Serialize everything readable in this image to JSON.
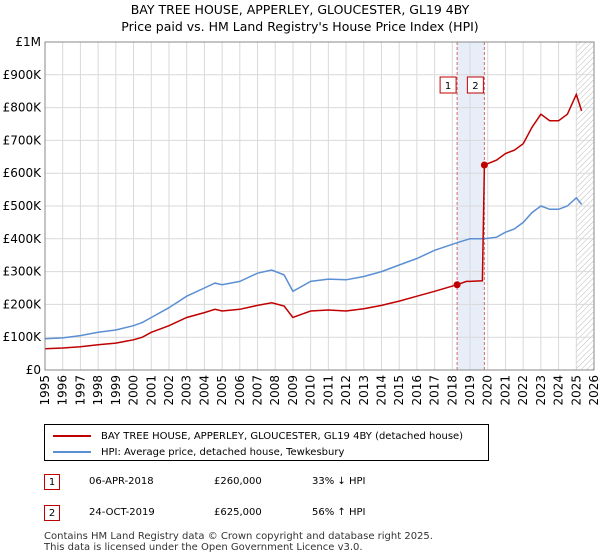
{
  "chart_data": {
    "type": "line",
    "title": "BAY TREE HOUSE, APPERLEY, GLOUCESTER, GL19 4BY",
    "subtitle": "Price paid vs. HM Land Registry's House Price Index (HPI)",
    "xlim": [
      1995,
      2026
    ],
    "ylim": [
      0,
      1000000
    ],
    "x_ticks": [
      "1995",
      "1996",
      "1997",
      "1998",
      "1999",
      "2000",
      "2001",
      "2002",
      "2003",
      "2004",
      "2005",
      "2006",
      "2007",
      "2008",
      "2009",
      "2010",
      "2011",
      "2012",
      "2013",
      "2014",
      "2015",
      "2016",
      "2017",
      "2018",
      "2019",
      "2020",
      "2021",
      "2022",
      "2023",
      "2024",
      "2025",
      "2026"
    ],
    "y_ticks": [
      {
        "value": 0,
        "label": "£0"
      },
      {
        "value": 100000,
        "label": "£100K"
      },
      {
        "value": 200000,
        "label": "£200K"
      },
      {
        "value": 300000,
        "label": "£300K"
      },
      {
        "value": 400000,
        "label": "£400K"
      },
      {
        "value": 500000,
        "label": "£500K"
      },
      {
        "value": 600000,
        "label": "£600K"
      },
      {
        "value": 700000,
        "label": "£700K"
      },
      {
        "value": 800000,
        "label": "£800K"
      },
      {
        "value": 900000,
        "label": "£900K"
      },
      {
        "value": 1000000,
        "label": "£1M"
      }
    ],
    "grid": true,
    "series": [
      {
        "name": "BAY TREE HOUSE, APPERLEY, GLOUCESTER, GL19 4BY (detached house)",
        "color": "#c00000",
        "points": [
          [
            1995.0,
            65000
          ],
          [
            1996.0,
            67000
          ],
          [
            1997.0,
            71000
          ],
          [
            1998.0,
            77000
          ],
          [
            1999.0,
            82000
          ],
          [
            2000.0,
            92000
          ],
          [
            2000.5,
            100000
          ],
          [
            2001.0,
            115000
          ],
          [
            2002.0,
            135000
          ],
          [
            2003.0,
            160000
          ],
          [
            2004.0,
            175000
          ],
          [
            2004.6,
            185000
          ],
          [
            2005.0,
            180000
          ],
          [
            2006.0,
            185000
          ],
          [
            2007.0,
            197000
          ],
          [
            2007.8,
            205000
          ],
          [
            2008.5,
            195000
          ],
          [
            2009.0,
            160000
          ],
          [
            2009.5,
            170000
          ],
          [
            2010.0,
            180000
          ],
          [
            2011.0,
            183000
          ],
          [
            2012.0,
            180000
          ],
          [
            2013.0,
            187000
          ],
          [
            2014.0,
            197000
          ],
          [
            2015.0,
            210000
          ],
          [
            2016.0,
            225000
          ],
          [
            2017.0,
            240000
          ],
          [
            2018.27,
            260000
          ],
          [
            2018.8,
            270000
          ],
          [
            2019.0,
            270000
          ],
          [
            2019.7,
            272000
          ],
          [
            2019.81,
            625000
          ],
          [
            2020.5,
            640000
          ],
          [
            2021.0,
            660000
          ],
          [
            2021.5,
            670000
          ],
          [
            2022.0,
            690000
          ],
          [
            2022.5,
            740000
          ],
          [
            2023.0,
            780000
          ],
          [
            2023.5,
            760000
          ],
          [
            2024.0,
            760000
          ],
          [
            2024.5,
            780000
          ],
          [
            2025.0,
            840000
          ],
          [
            2025.3,
            790000
          ]
        ]
      },
      {
        "name": "HPI: Average price, detached house, Tewkesbury",
        "color": "#5b8fd4",
        "points": [
          [
            1995.0,
            95000
          ],
          [
            1996.0,
            98000
          ],
          [
            1997.0,
            105000
          ],
          [
            1998.0,
            115000
          ],
          [
            1999.0,
            122000
          ],
          [
            2000.0,
            135000
          ],
          [
            2000.5,
            145000
          ],
          [
            2001.0,
            160000
          ],
          [
            2002.0,
            190000
          ],
          [
            2003.0,
            225000
          ],
          [
            2004.0,
            250000
          ],
          [
            2004.6,
            265000
          ],
          [
            2005.0,
            260000
          ],
          [
            2006.0,
            270000
          ],
          [
            2007.0,
            295000
          ],
          [
            2007.8,
            305000
          ],
          [
            2008.5,
            290000
          ],
          [
            2009.0,
            240000
          ],
          [
            2009.5,
            255000
          ],
          [
            2010.0,
            270000
          ],
          [
            2011.0,
            277000
          ],
          [
            2012.0,
            275000
          ],
          [
            2013.0,
            285000
          ],
          [
            2014.0,
            300000
          ],
          [
            2015.0,
            320000
          ],
          [
            2016.0,
            340000
          ],
          [
            2017.0,
            365000
          ],
          [
            2018.27,
            388000
          ],
          [
            2018.8,
            397000
          ],
          [
            2019.0,
            400000
          ],
          [
            2019.81,
            400000
          ],
          [
            2020.5,
            405000
          ],
          [
            2021.0,
            420000
          ],
          [
            2021.5,
            430000
          ],
          [
            2022.0,
            450000
          ],
          [
            2022.5,
            480000
          ],
          [
            2023.0,
            500000
          ],
          [
            2023.5,
            490000
          ],
          [
            2024.0,
            490000
          ],
          [
            2024.5,
            500000
          ],
          [
            2025.0,
            525000
          ],
          [
            2025.3,
            505000
          ]
        ]
      }
    ],
    "sales": [
      {
        "label": "1",
        "x": 2018.27,
        "y": 260000
      },
      {
        "label": "2",
        "x": 2019.81,
        "y": 625000
      }
    ],
    "shade_from": 2018.27,
    "shade_to": 2019.81,
    "hatch_from": 2025.0
  },
  "legend": [
    {
      "label": "BAY TREE HOUSE, APPERLEY, GLOUCESTER, GL19 4BY (detached house)",
      "color": "#c00000"
    },
    {
      "label": "HPI: Average price, detached house, Tewkesbury",
      "color": "#5b8fd4"
    }
  ],
  "transactions": [
    {
      "num": "1",
      "date": "06-APR-2018",
      "price": "£260,000",
      "hpi": "33% ↓ HPI"
    },
    {
      "num": "2",
      "date": "24-OCT-2019",
      "price": "£625,000",
      "hpi": "56% ↑ HPI"
    }
  ],
  "footer": {
    "line1": "Contains HM Land Registry data © Crown copyright and database right 2025.",
    "line2": "This data is licensed under the Open Government Licence v3.0."
  }
}
